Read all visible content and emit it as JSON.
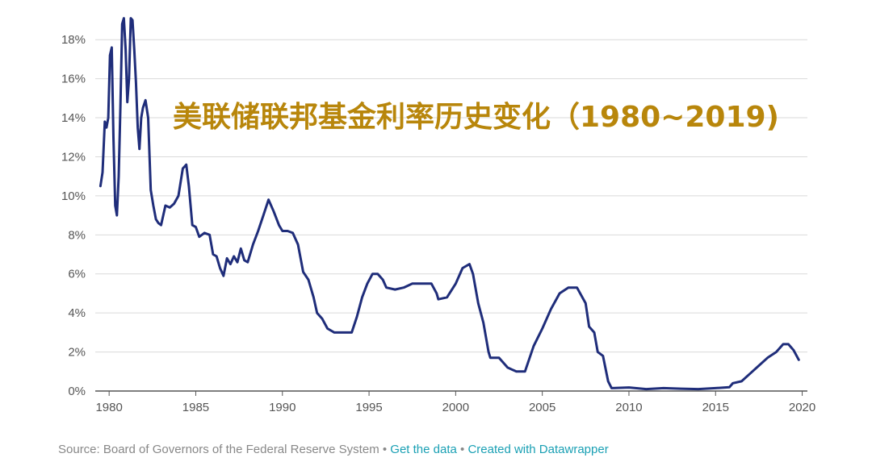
{
  "chart_data": {
    "type": "line",
    "title": "美联储联邦基金利率历史变化（1980~2019)",
    "xlabel": "",
    "ylabel": "",
    "xlim": [
      1979.2,
      2020.3
    ],
    "ylim": [
      0,
      19
    ],
    "y_ticks": [
      "0%",
      "2%",
      "4%",
      "6%",
      "8%",
      "10%",
      "12%",
      "14%",
      "16%",
      "18%"
    ],
    "y_tick_values": [
      0,
      2,
      4,
      6,
      8,
      10,
      12,
      14,
      16,
      18
    ],
    "x_ticks": [
      "1980",
      "1985",
      "1990",
      "1995",
      "2000",
      "2005",
      "2010",
      "2015",
      "2020"
    ],
    "x_tick_values": [
      1980,
      1985,
      1990,
      1995,
      2000,
      2005,
      2010,
      2015,
      2020
    ],
    "grid": true,
    "line_color": "#1f2d7a",
    "series": [
      {
        "x": [
          1979.5,
          1979.62,
          1979.75,
          1979.85,
          1979.95,
          1980.05,
          1980.15,
          1980.25,
          1980.35,
          1980.45,
          1980.55,
          1980.65,
          1980.75,
          1980.85,
          1980.95,
          1981.05,
          1981.15,
          1981.25,
          1981.35,
          1981.45,
          1981.55,
          1981.65,
          1981.75,
          1981.85,
          1981.95,
          1982.1,
          1982.25,
          1982.4,
          1982.55,
          1982.7,
          1982.85,
          1983.0,
          1983.25,
          1983.5,
          1983.75,
          1984.0,
          1984.25,
          1984.45,
          1984.6,
          1984.8,
          1985.0,
          1985.2,
          1985.5,
          1985.8,
          1986.0,
          1986.2,
          1986.4,
          1986.6,
          1986.8,
          1987.0,
          1987.2,
          1987.4,
          1987.6,
          1987.8,
          1988.0,
          1988.3,
          1988.6,
          1988.9,
          1989.2,
          1989.5,
          1989.8,
          1990.0,
          1990.3,
          1990.6,
          1990.9,
          1991.2,
          1991.5,
          1991.8,
          1992.0,
          1992.3,
          1992.6,
          1993.0,
          1993.5,
          1994.0,
          1994.3,
          1994.6,
          1994.9,
          1995.2,
          1995.5,
          1995.8,
          1996.0,
          1996.5,
          1997.0,
          1997.5,
          1998.0,
          1998.6,
          1998.9,
          1999.0,
          1999.5,
          2000.0,
          2000.4,
          2000.8,
          2001.0,
          2001.3,
          2001.6,
          2001.9,
          2002.0,
          2002.5,
          2002.9,
          2003.0,
          2003.5,
          2004.0,
          2004.5,
          2005.0,
          2005.5,
          2006.0,
          2006.5,
          2007.0,
          2007.5,
          2007.7,
          2008.0,
          2008.2,
          2008.5,
          2008.8,
          2009.0,
          2010.0,
          2011.0,
          2012.0,
          2013.0,
          2014.0,
          2015.0,
          2015.8,
          2016.0,
          2016.5,
          2017.0,
          2017.5,
          2018.0,
          2018.5,
          2018.9,
          2019.2,
          2019.5,
          2019.8
        ],
        "values": [
          10.5,
          11.2,
          13.8,
          13.5,
          14.0,
          17.2,
          17.6,
          13.0,
          9.5,
          9.0,
          11.0,
          14.5,
          18.8,
          19.1,
          17.5,
          14.8,
          16.0,
          19.1,
          19.0,
          17.5,
          15.8,
          13.5,
          12.4,
          14.0,
          14.5,
          14.9,
          14.0,
          10.3,
          9.5,
          8.8,
          8.6,
          8.5,
          9.5,
          9.4,
          9.6,
          10.0,
          11.4,
          11.6,
          10.5,
          8.5,
          8.4,
          7.9,
          8.1,
          8.0,
          7.0,
          6.9,
          6.3,
          5.9,
          6.8,
          6.5,
          6.9,
          6.6,
          7.3,
          6.7,
          6.6,
          7.5,
          8.2,
          9.0,
          9.8,
          9.2,
          8.5,
          8.2,
          8.2,
          8.1,
          7.5,
          6.1,
          5.7,
          4.8,
          4.0,
          3.7,
          3.2,
          3.0,
          3.0,
          3.0,
          3.8,
          4.8,
          5.5,
          6.0,
          6.0,
          5.7,
          5.3,
          5.2,
          5.3,
          5.5,
          5.5,
          5.5,
          5.0,
          4.7,
          4.8,
          5.5,
          6.3,
          6.5,
          6.0,
          4.5,
          3.5,
          2.0,
          1.7,
          1.7,
          1.3,
          1.2,
          1.0,
          1.0,
          2.3,
          3.2,
          4.2,
          5.0,
          5.3,
          5.3,
          4.5,
          3.3,
          3.0,
          2.0,
          1.8,
          0.5,
          0.15,
          0.18,
          0.1,
          0.15,
          0.12,
          0.1,
          0.15,
          0.2,
          0.4,
          0.5,
          0.9,
          1.3,
          1.7,
          2.0,
          2.4,
          2.4,
          2.1,
          1.6
        ]
      }
    ]
  },
  "footer": {
    "source": "Source: Board of Governors of the Federal Reserve System",
    "sep1": " • ",
    "get_data": "Get the data",
    "sep2": " • ",
    "created_with": "Created with Datawrapper"
  }
}
